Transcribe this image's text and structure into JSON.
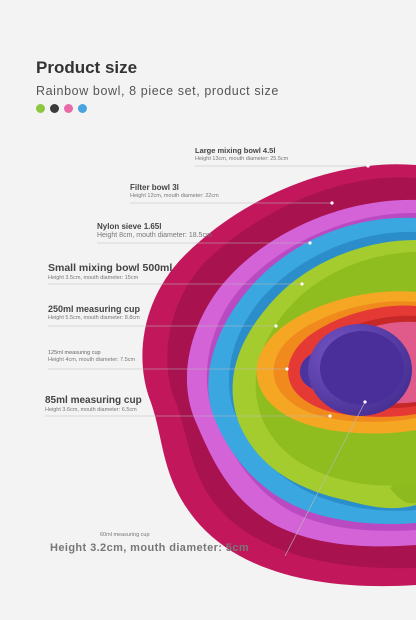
{
  "header": {
    "title": "Product size",
    "subtitle": "Rainbow bowl, 8 piece set, product size"
  },
  "color_swatches": [
    "#8dc63f",
    "#3b3b3b",
    "#e86aa8",
    "#4aa3df"
  ],
  "items": [
    {
      "name": "Large mixing bowl 4.5l",
      "dims": "Height 13cm, mouth diameter: 25.5cm"
    },
    {
      "name": "Filter bowl 3l",
      "dims": "Height 12cm, mouth diameter: 22cm"
    },
    {
      "name": "Nylon sieve 1.65l",
      "dims": "Height 8cm, mouth diameter: 18.5cm"
    },
    {
      "name": "Small mixing bowl 500ml",
      "dims": "Height 3.5cm, mouth diameter: 15cm"
    },
    {
      "name": "250ml measuring cup",
      "dims": "Height 5.5cm, mouth diameter: 8.8cm"
    },
    {
      "name": "125ml measuring cup",
      "dims": "Height 4cm, mouth diameter: 7.5cm"
    },
    {
      "name": "85ml measuring cup",
      "dims": "Height 3.6cm, mouth diameter: 6.5cm"
    },
    {
      "name": "60ml measuring cup",
      "dims": "Height 3.2cm, mouth diameter: 5cm"
    }
  ]
}
